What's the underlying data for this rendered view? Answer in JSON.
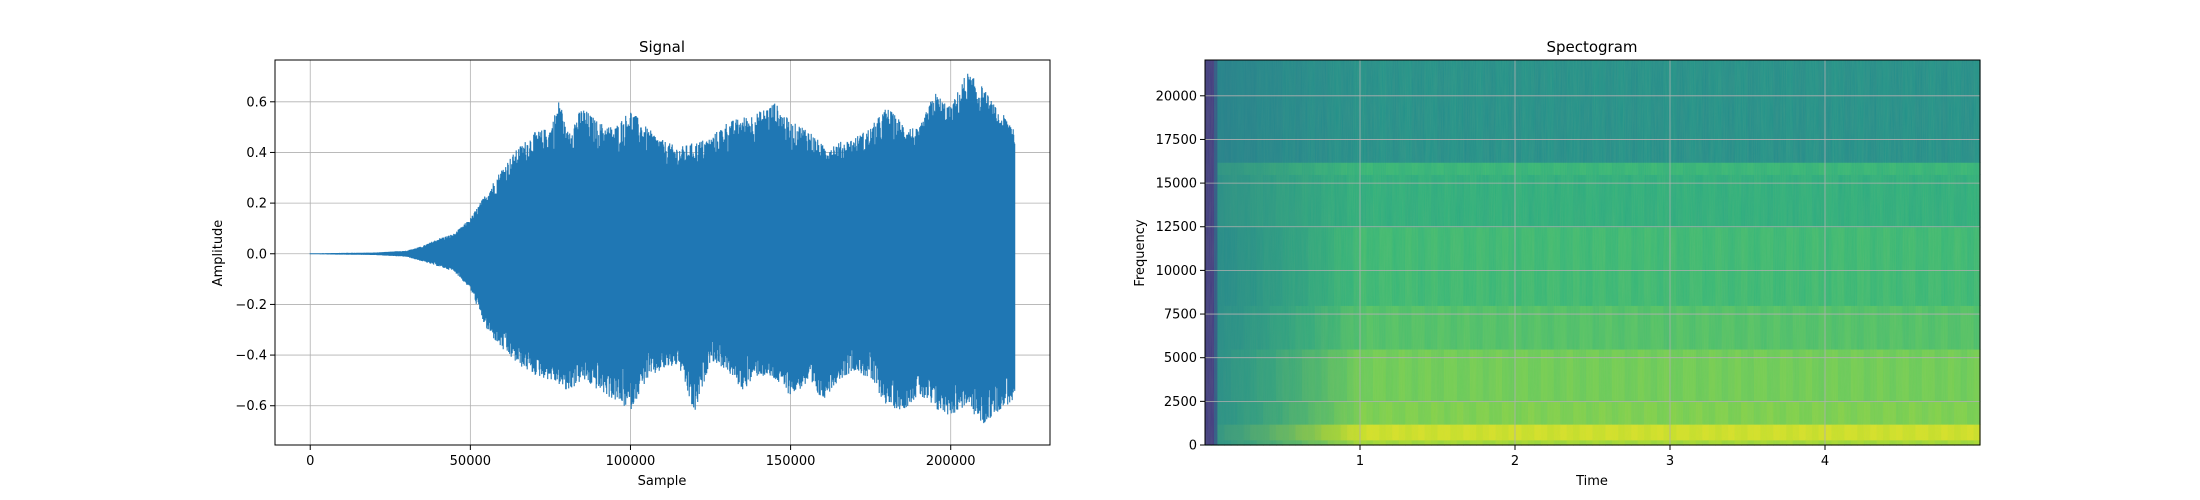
{
  "chart_data": [
    {
      "type": "line",
      "title": "Signal",
      "xlabel": "Sample",
      "ylabel": "Amplitude",
      "xlim": [
        -11000,
        231000
      ],
      "ylim": [
        -0.755,
        0.765
      ],
      "grid": true,
      "series_color": "#1f77b4",
      "x_ticks": [
        {
          "value": 0,
          "label": "0"
        },
        {
          "value": 50000,
          "label": "50000"
        },
        {
          "value": 100000,
          "label": "100000"
        },
        {
          "value": 150000,
          "label": "150000"
        },
        {
          "value": 200000,
          "label": "200000"
        }
      ],
      "y_ticks": [
        {
          "value": -0.6,
          "label": "−0.6"
        },
        {
          "value": -0.4,
          "label": "−0.4"
        },
        {
          "value": -0.2,
          "label": "−0.2"
        },
        {
          "value": 0.0,
          "label": "0.0"
        },
        {
          "value": 0.2,
          "label": "0.2"
        },
        {
          "value": 0.4,
          "label": "0.4"
        },
        {
          "value": 0.6,
          "label": "0.6"
        }
      ],
      "envelope": {
        "x": [
          0,
          20000,
          30000,
          35000,
          40000,
          45000,
          50000,
          55000,
          60000,
          65000,
          70000,
          75000,
          78000,
          80000,
          85000,
          90000,
          95000,
          100000,
          105000,
          110000,
          115000,
          120000,
          125000,
          130000,
          135000,
          140000,
          145000,
          150000,
          155000,
          160000,
          165000,
          170000,
          175000,
          180000,
          185000,
          190000,
          195000,
          200000,
          205000,
          210000,
          215000,
          220000
        ],
        "upper": [
          0.002,
          0.005,
          0.012,
          0.03,
          0.06,
          0.08,
          0.14,
          0.24,
          0.34,
          0.42,
          0.48,
          0.5,
          0.62,
          0.48,
          0.58,
          0.52,
          0.5,
          0.57,
          0.5,
          0.45,
          0.42,
          0.44,
          0.46,
          0.52,
          0.54,
          0.56,
          0.6,
          0.52,
          0.5,
          0.43,
          0.44,
          0.46,
          0.5,
          0.58,
          0.52,
          0.49,
          0.64,
          0.58,
          0.72,
          0.66,
          0.56,
          0.52
        ],
        "lower": [
          -0.002,
          -0.005,
          -0.012,
          -0.03,
          -0.05,
          -0.07,
          -0.14,
          -0.3,
          -0.38,
          -0.44,
          -0.48,
          -0.5,
          -0.52,
          -0.55,
          -0.5,
          -0.54,
          -0.58,
          -0.62,
          -0.5,
          -0.46,
          -0.44,
          -0.64,
          -0.42,
          -0.46,
          -0.54,
          -0.48,
          -0.5,
          -0.56,
          -0.52,
          -0.58,
          -0.5,
          -0.46,
          -0.5,
          -0.6,
          -0.62,
          -0.56,
          -0.62,
          -0.64,
          -0.6,
          -0.68,
          -0.62,
          -0.58
        ]
      }
    },
    {
      "type": "heatmap",
      "title": "Spectogram",
      "xlabel": "Time",
      "ylabel": "Frequency",
      "xlim": [
        0,
        5.0
      ],
      "ylim": [
        0,
        22050
      ],
      "grid": true,
      "colormap": "viridis",
      "x_ticks": [
        {
          "value": 1,
          "label": "1"
        },
        {
          "value": 2,
          "label": "2"
        },
        {
          "value": 3,
          "label": "3"
        },
        {
          "value": 4,
          "label": "4"
        }
      ],
      "y_ticks": [
        {
          "value": 0,
          "label": "0"
        },
        {
          "value": 2500,
          "label": "2500"
        },
        {
          "value": 5000,
          "label": "5000"
        },
        {
          "value": 7500,
          "label": "7500"
        },
        {
          "value": 10000,
          "label": "10000"
        },
        {
          "value": 12500,
          "label": "12500"
        },
        {
          "value": 15000,
          "label": "15000"
        },
        {
          "value": 17500,
          "label": "17500"
        },
        {
          "value": 20000,
          "label": "20000"
        }
      ],
      "bands": [
        {
          "f0": 0,
          "f1": 300,
          "level": 0.86
        },
        {
          "f0": 300,
          "f1": 1200,
          "level": 0.93
        },
        {
          "f0": 1200,
          "f1": 2500,
          "level": 0.8
        },
        {
          "f0": 2500,
          "f1": 5500,
          "level": 0.78
        },
        {
          "f0": 5500,
          "f1": 8000,
          "level": 0.72
        },
        {
          "f0": 8000,
          "f1": 12500,
          "level": 0.68
        },
        {
          "f0": 12500,
          "f1": 15500,
          "level": 0.63
        },
        {
          "f0": 15500,
          "f1": 16200,
          "level": 0.66
        },
        {
          "f0": 16200,
          "f1": 22050,
          "level": 0.5
        }
      ],
      "onset_column": {
        "t0": 0,
        "t1": 0.08,
        "level": 0.18
      }
    }
  ]
}
